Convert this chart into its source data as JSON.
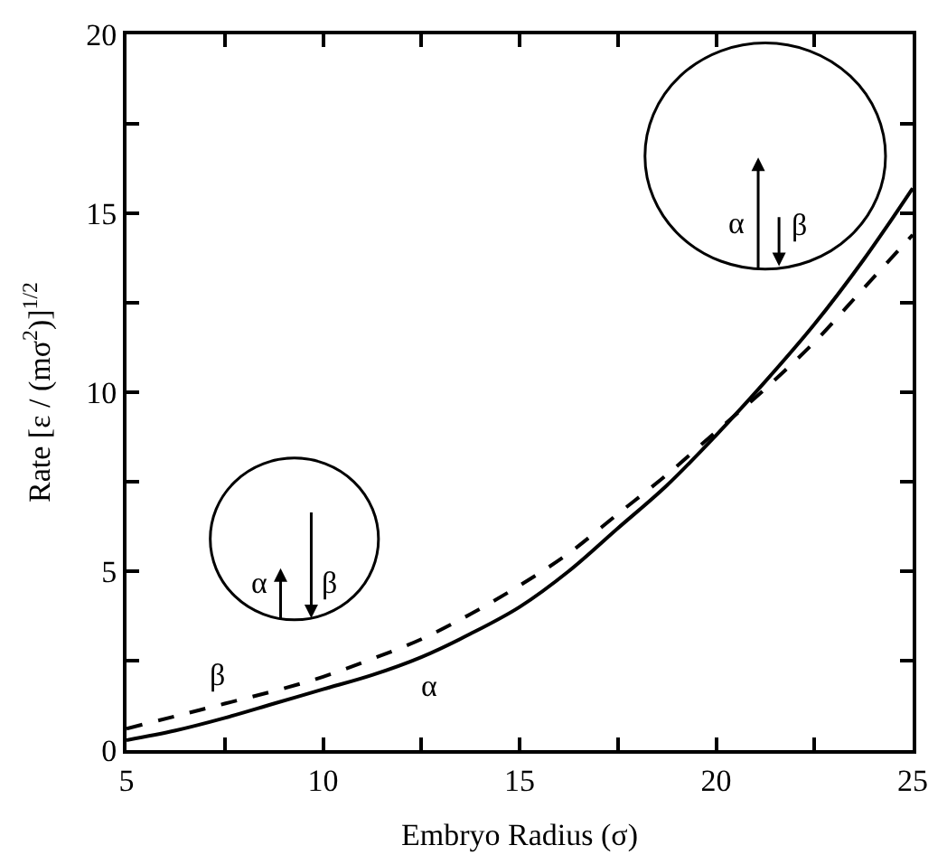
{
  "chart_data": {
    "type": "line",
    "xlabel": "Embryo Radius (σ)",
    "ylabel": "Rate [ε / (mσ$^{2}$)]$^{1/2}$",
    "x": [
      5,
      6.25,
      7.5,
      8.75,
      10,
      11.25,
      12.5,
      13.75,
      15,
      16.25,
      17.5,
      18.75,
      20,
      21.25,
      22.5,
      23.75,
      25
    ],
    "series": [
      {
        "name": "α",
        "color": "#000000",
        "line_style": "solid",
        "values": [
          0.28,
          0.55,
          0.9,
          1.3,
          1.7,
          2.1,
          2.6,
          3.25,
          4.0,
          5.0,
          6.2,
          7.4,
          8.8,
          10.3,
          11.9,
          13.7,
          15.7
        ]
      },
      {
        "name": "β",
        "color": "#000000",
        "line_style": "dashed",
        "values": [
          0.6,
          0.95,
          1.3,
          1.65,
          2.05,
          2.55,
          3.1,
          3.8,
          4.6,
          5.5,
          6.6,
          7.7,
          8.9,
          10.1,
          11.4,
          12.9,
          14.4
        ]
      }
    ],
    "annotations": [
      "α",
      "β",
      "α",
      "β"
    ],
    "xlim": [
      5,
      25
    ],
    "xticks": [
      5,
      {
        "value": 7.5,
        "label": null
      },
      10,
      {
        "value": 12.5,
        "label": null
      },
      15,
      {
        "value": 17.5,
        "label": null
      },
      20,
      {
        "value": 22.5,
        "label": null
      },
      25
    ],
    "ylim": [
      0,
      20
    ],
    "yticks": [
      0,
      {
        "value": 2.5,
        "label": null
      },
      5,
      {
        "value": 7.5,
        "label": null
      },
      10,
      {
        "value": 12.5,
        "label": null
      },
      15,
      {
        "value": 17.5,
        "label": null
      },
      20
    ],
    "legend": false,
    "marker": "none"
  }
}
